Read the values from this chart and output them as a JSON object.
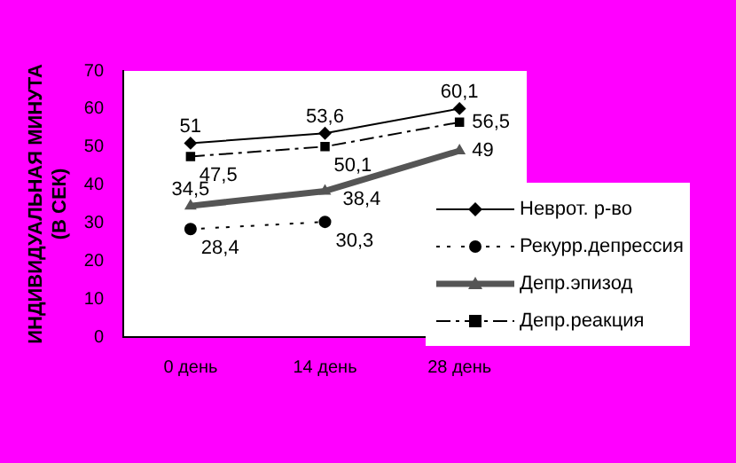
{
  "chart_data": {
    "type": "line",
    "ylabel": "ИНДИВИДУАЛЬНАЯ МИНУТА\n(В СЕК)",
    "categories": [
      "0 день",
      "14 день",
      "28 день"
    ],
    "ylim": [
      0,
      70
    ],
    "yticks": [
      0,
      10,
      20,
      30,
      40,
      50,
      60,
      70
    ],
    "grid": false,
    "legend": "right",
    "series": [
      {
        "name": "Неврот. р-во",
        "color": "#000000",
        "values": [
          51,
          53.6,
          60.1
        ],
        "value_labels": [
          "51",
          "53,6",
          "60,1"
        ],
        "marker": "diamond",
        "line_style": "solid"
      },
      {
        "name": "Рекурр.депрессия",
        "color": "#000000",
        "values": [
          28.4,
          30.3,
          null
        ],
        "value_labels": [
          "28,4",
          "30,3",
          null
        ],
        "marker": "circle",
        "line_style": "dotted"
      },
      {
        "name": "Депр.эпизод",
        "color": "#555555",
        "values": [
          34.5,
          38.4,
          49
        ],
        "value_labels": [
          "34,5",
          "38,4",
          "49"
        ],
        "marker": "triangle",
        "line_style": "solid"
      },
      {
        "name": "Депр.реакция",
        "color": "#000000",
        "values": [
          47.5,
          50.1,
          56.5
        ],
        "value_labels": [
          "47,5",
          "50,1",
          "56,5"
        ],
        "marker": "square",
        "line_style": "dashed"
      }
    ]
  }
}
